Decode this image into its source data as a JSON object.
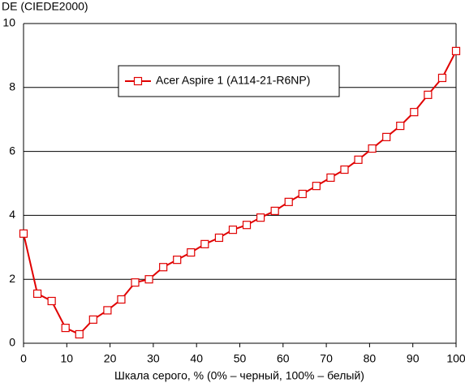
{
  "chart_data": {
    "type": "line",
    "y_label": "DE (CIEDE2000)",
    "x_label": "Шкала серого, % (0% – черный, 100% – белый)",
    "series": [
      {
        "name": "Acer Aspire 1 (A114-21-R6NP)",
        "color": "#e00000",
        "x": [
          0,
          3.2,
          6.5,
          9.7,
          12.9,
          16.1,
          19.4,
          22.6,
          25.8,
          29,
          32.3,
          35.5,
          38.7,
          41.9,
          45.2,
          48.4,
          51.6,
          54.8,
          58.1,
          61.3,
          64.5,
          67.7,
          71,
          74.2,
          77.4,
          80.6,
          83.9,
          87.1,
          90.3,
          93.5,
          96.8,
          100
        ],
        "values": [
          3.43,
          1.55,
          1.32,
          0.48,
          0.28,
          0.74,
          1.03,
          1.37,
          1.9,
          2.0,
          2.38,
          2.61,
          2.84,
          3.1,
          3.3,
          3.55,
          3.7,
          3.93,
          4.14,
          4.42,
          4.67,
          4.92,
          5.18,
          5.43,
          5.74,
          6.09,
          6.45,
          6.8,
          7.23,
          7.77,
          8.3,
          9.14
        ]
      }
    ],
    "xlim": [
      0,
      100
    ],
    "xticks": [
      0,
      10,
      20,
      30,
      40,
      50,
      60,
      70,
      80,
      90,
      100
    ],
    "ylim": [
      0,
      10
    ],
    "yticks": [
      0,
      2,
      4,
      6,
      8,
      10
    ],
    "grid": true
  }
}
